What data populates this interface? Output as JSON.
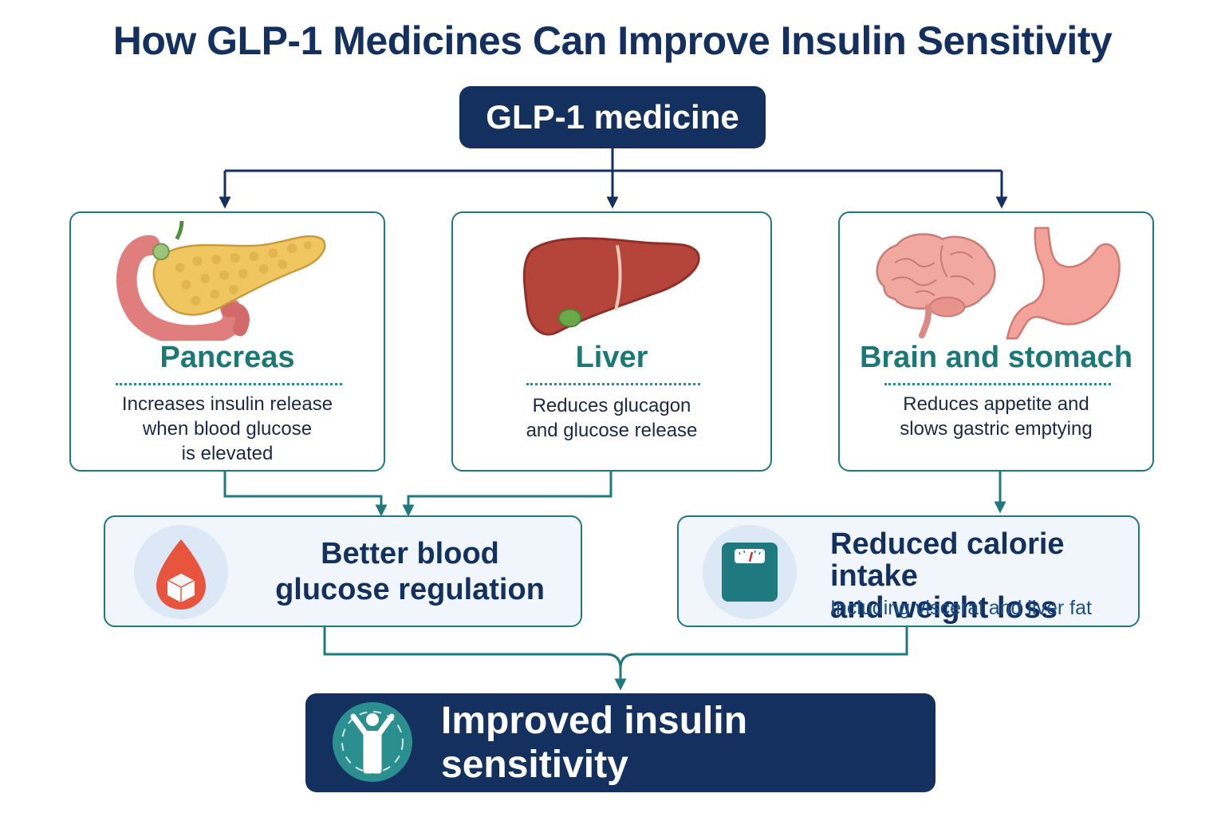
{
  "title": "How GLP-1 Medicines Can Improve Insulin Sensitivity",
  "source_node": {
    "label": "GLP-1 medicine"
  },
  "organs": [
    {
      "heading": "Pancreas",
      "description_lines": [
        "Increases insulin release",
        "when blood glucose",
        "is elevated"
      ],
      "icon": "pancreas-icon"
    },
    {
      "heading": "Liver",
      "description_lines": [
        "Reduces glucagon",
        "and glucose release"
      ],
      "icon": "liver-icon"
    },
    {
      "heading": "Brain and stomach",
      "description_lines": [
        "Reduces appetite and",
        "slows gastric emptying"
      ],
      "icons": [
        "brain-icon",
        "stomach-icon"
      ]
    }
  ],
  "effects": {
    "glucose": {
      "lines": [
        "Better blood",
        "glucose regulation"
      ],
      "icon": "blood-drop-icon"
    },
    "weight": {
      "lines": [
        "Reduced calorie intake",
        "and weight loss"
      ],
      "sub": "Including visceral and liver fat",
      "icon": "scale-icon"
    }
  },
  "outcome": {
    "label": "Improved insulin sensitivity",
    "icon": "person-icon"
  },
  "colors": {
    "navy": "#13305f",
    "teal": "#1f7a80",
    "heading_teal": "#1c7876",
    "drop_red": "#e8553f"
  }
}
